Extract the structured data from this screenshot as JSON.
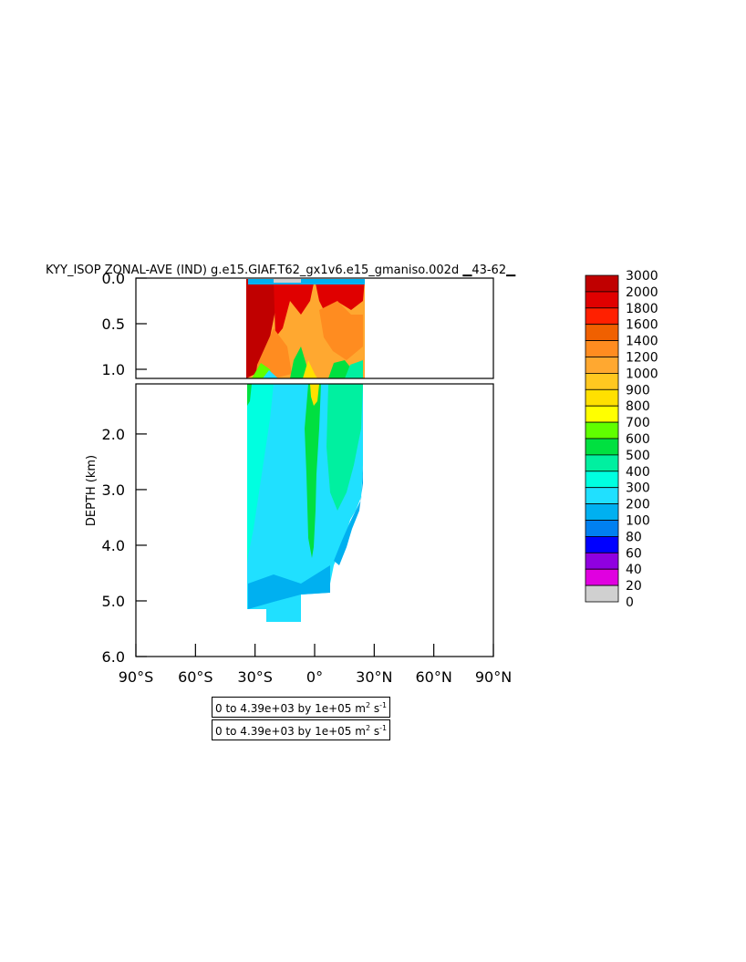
{
  "chart_data": {
    "type": "heatmap",
    "title": "KYY_ISOP ZONAL-AVE (IND) g.e15.GIAF.T62_gx1v6.e15_gmaniso.002d ▁43-62▁",
    "ylabel": "DEPTH (km)",
    "xlabel": "",
    "x_ticks": [
      "90°S",
      "60°S",
      "30°S",
      "0°",
      "30°N",
      "60°N",
      "90°N"
    ],
    "x_range": [
      -90,
      90
    ],
    "upper_panel": {
      "y_range": [
        0.0,
        1.1
      ],
      "y_ticks": [
        "0.0",
        "0.5",
        "1.0"
      ],
      "y_tick_values": [
        0.0,
        0.5,
        1.0
      ]
    },
    "lower_panel": {
      "y_range": [
        1.1,
        6.0
      ],
      "y_ticks": [
        "2.0",
        "3.0",
        "4.0",
        "5.0",
        "6.0"
      ],
      "y_tick_values": [
        2.0,
        3.0,
        4.0,
        5.0,
        6.0
      ]
    },
    "legend_placement": "right",
    "colorbar": {
      "labels": [
        "3000",
        "2000",
        "1800",
        "1600",
        "1400",
        "1200",
        "1000",
        "900",
        "800",
        "700",
        "600",
        "500",
        "400",
        "300",
        "200",
        "100",
        "80",
        "60",
        "40",
        "20",
        "0"
      ],
      "colors": [
        "#c00000",
        "#e00000",
        "#ff2000",
        "#f06000",
        "#ff8c20",
        "#ffa830",
        "#ffc820",
        "#ffe000",
        "#ffff00",
        "#60ff00",
        "#00e040",
        "#00f0a0",
        "#00ffe0",
        "#20e0ff",
        "#00b0f0",
        "#0080f0",
        "#0000ff",
        "#9000e0",
        "#e000e0",
        "#d0d0d0",
        "#707070"
      ]
    },
    "contour_info": [
      "0 to 4.39e+03 by 1e+05 m",
      "0 to 4.39e+03 by 1e+05 m"
    ],
    "unit_suffix": {
      "base": "m",
      "sup1": "2",
      "mid": " s",
      "sup2": "-1"
    }
  }
}
